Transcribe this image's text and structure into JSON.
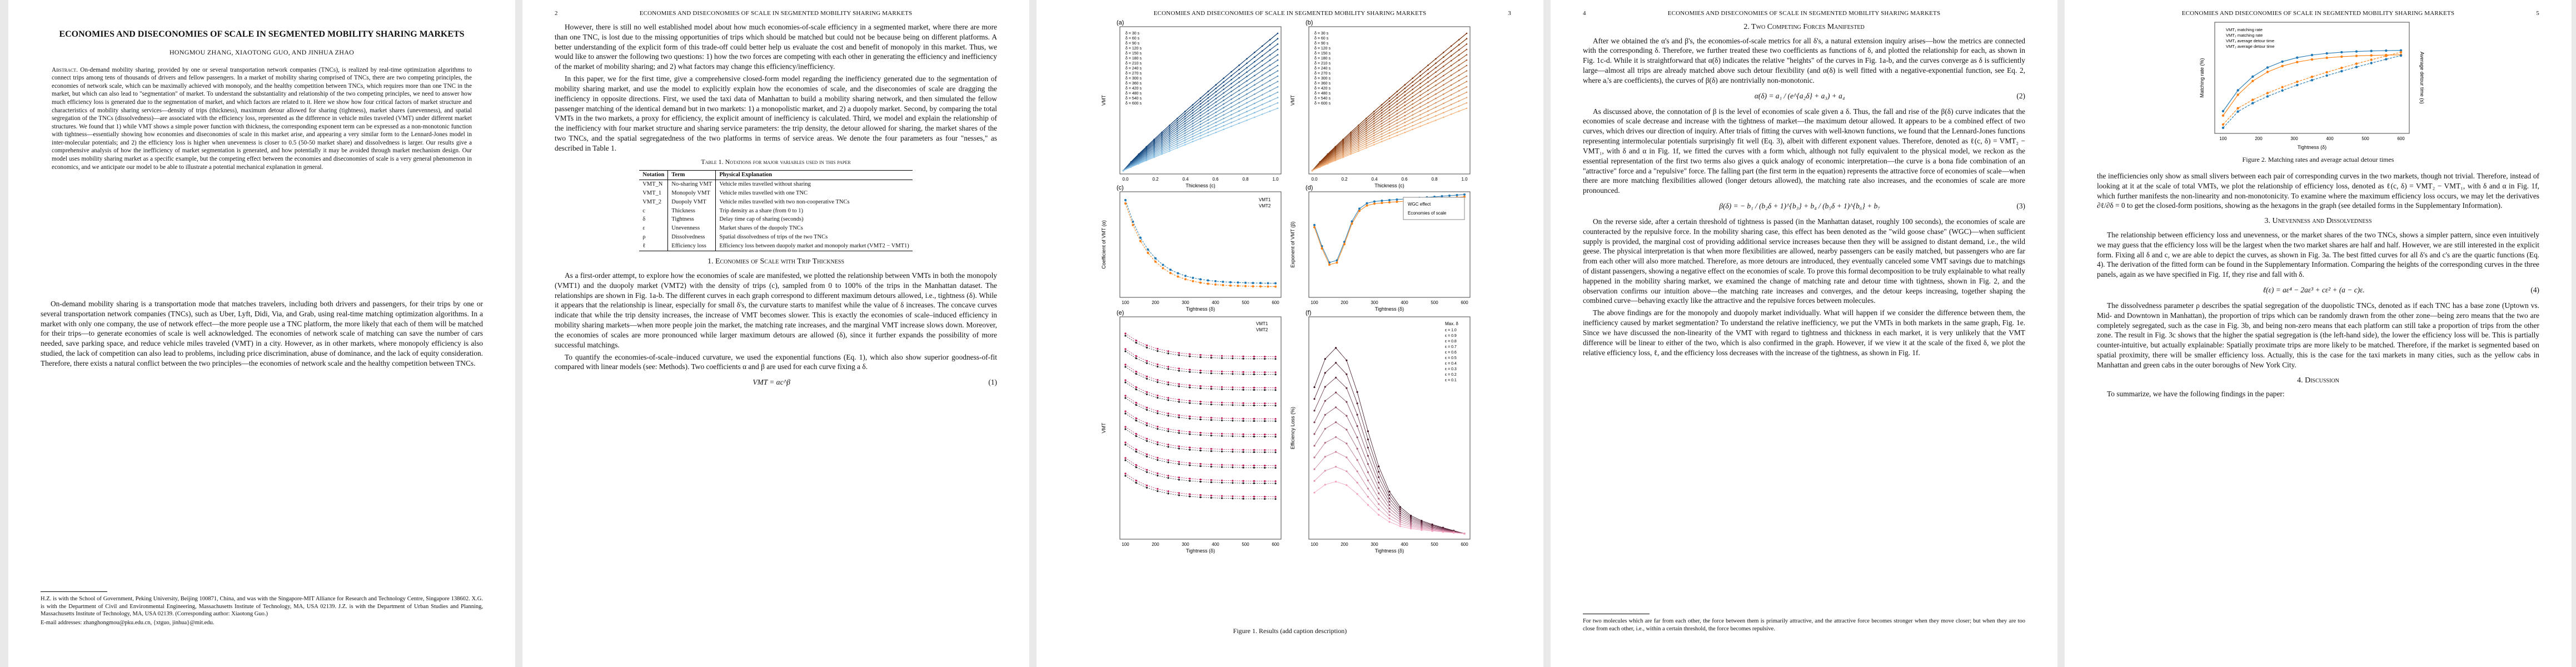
{
  "arxiv_id": "arXiv:2204.02316v1  [cs.SI]  5 Apr 2022",
  "running_head": "ECONOMIES AND DISECONOMIES OF SCALE IN SEGMENTED MOBILITY SHARING MARKETS",
  "page_numbers": [
    "2",
    "3",
    "4",
    "5"
  ],
  "p1": {
    "title": "ECONOMIES AND DISECONOMIES OF SCALE IN SEGMENTED MOBILITY SHARING MARKETS",
    "authors": "HONGMOU ZHANG, XIAOTONG GUO, AND JINHUA ZHAO",
    "abstract_label": "Abstract.",
    "abstract": "On-demand mobility sharing, provided by one or several transportation network companies (TNCs), is realized by real-time optimization algorithms to connect trips among tens of thousands of drivers and fellow passengers. In a market of mobility sharing comprised of TNCs, there are two competing principles, the economies of network scale, which can be maximally achieved with monopoly, and the healthy competition between TNCs, which requires more than one TNC in the market, but which can also lead to \"segmentation\" of market. To understand the substantiality and relationship of the two competing principles, we need to answer how much efficiency loss is generated due to the segmentation of market, and which factors are related to it. Here we show how four critical factors of market structure and characteristics of mobility sharing services—density of trips (thickness), maximum detour allowed for sharing (tightness), market shares (unevenness), and spatial segregation of the TNCs (dissolvedness)—are associated with the efficiency loss, represented as the difference in vehicle miles traveled (VMT) under different market structures. We found that 1) while VMT shows a simple power function with thickness, the corresponding exponent term can be expressed as a non-monotonic function with tightness—essentially showing how economies and diseconomies of scale in this market arise, and appearing a very similar form to the Lennard-Jones model in inter-molecular potentials; and 2) the efficiency loss is higher when unevenness is closer to 0.5 (50-50 market share) and dissolvedness is larger. Our results give a comprehensive analysis of how the inefficiency of market segmentation is generated, and how potentially it may be avoided through market mechanism design. Our model uses mobility sharing market as a specific example, but the competing effect between the economies and diseconomies of scale is a very general phenomenon in economics, and we anticipate our model to be able to illustrate a potential mechanical explanation in general.",
    "intro_p": "On-demand mobility sharing is a transportation mode that matches travelers, including both drivers and passengers, for their trips by one or several transportation network companies (TNCs), such as Uber, Lyft, Didi, Via, and Grab, using real-time matching optimization algorithms. In a market with only one company, the use of network effect—the more people use a TNC platform, the more likely that each of them will be matched for their trips—to generate economies of scale is well acknowledged. The economies of network scale of matching can save the number of cars needed, save parking space, and reduce vehicle miles traveled (VMT) in a city. However, as in other markets, where monopoly efficiency is also studied, the lack of competition can also lead to problems, including price discrimination, abuse of dominance, and the lack of equity consideration. Therefore, there exists a natural conflict between the two principles—the economies of network scale and the healthy competition between TNCs.",
    "footnote": "H.Z. is with the School of Government, Peking University, Beijing 100871, China, and was with the Singapore-MIT Alliance for Research and Technology Centre, Singapore 138602. X.G. is with the Department of Civil and Environmental Engineering, Massachusetts Institute of Technology, MA, USA 02139. J.Z. is with the Department of Urban Studies and Planning, Massachusetts Institute of Technology, MA, USA 02139. (Corresponding author: Xiaotong Guo.)",
    "emails": "E-mail addresses: zhanghongmou@pku.edu.cn, {xtguo, jinhua}@mit.edu."
  },
  "p2": {
    "para1": "However, there is still no well established model about how much economies-of-scale efficiency in a segmented market, where there are more than one TNC, is lost due to the missing opportunities of trips which should be matched but could not be because being on different platforms. A better understanding of the explicit form of this trade-off could better help us evaluate the cost and benefit of monopoly in this market. Thus, we would like to answer the following two questions: 1) how the two forces are competing with each other in generating the efficiency and inefficiency of the market of mobility sharing; and 2) what factors may change this efficiency/inefficiency.",
    "para2": "In this paper, we for the first time, give a comprehensive closed-form model regarding the inefficiency generated due to the segmentation of mobility sharing market, and use the model to explicitly explain how the economies of scale, and the diseconomies of scale are dragging the inefficiency in opposite directions. First, we used the taxi data of Manhattan to build a mobility sharing network, and then simulated the fellow passenger matching of the identical demand but in two markets: 1) a monopolistic market, and 2) a duopoly market. Second, by comparing the total VMTs in the two markets, a proxy for efficiency, the explicit amount of inefficiency is calculated. Third, we model and explain the relationship of the inefficiency with four market structure and sharing service parameters: the trip density, the detour allowed for sharing, the market shares of the two TNCs, and the spatial segregatedness of the two platforms in terms of service areas. We denote the four parameters as four \"nesses,\" as described in Table 1.",
    "table_caption": "Table 1.  Notations for major variables used in this paper",
    "table_headers": [
      "Notation",
      "Term",
      "Physical Explanation"
    ],
    "table_rows": [
      [
        "VMT_N",
        "No-sharing VMT",
        "Vehicle miles travelled without sharing"
      ],
      [
        "VMT_1",
        "Monopoly VMT",
        "Vehicle miles travelled with one TNC"
      ],
      [
        "VMT_2",
        "Duopoly VMT",
        "Vehicle miles travelled with two non-cooperative TNCs"
      ],
      [
        "c",
        "Thickness",
        "Trip density as a share (from 0 to 1)"
      ],
      [
        "δ",
        "Tightness",
        "Delay time cap of sharing (seconds)"
      ],
      [
        "ε",
        "Unevenness",
        "Market shares of the duopoly TNCs"
      ],
      [
        "ρ",
        "Dissolvedness",
        "Spatial dissolvedness of trips of the two TNCs"
      ],
      [
        "ℓ",
        "Efficiency loss",
        "Efficiency loss between duopoly market and monopoly market (VMT2 − VMT1)"
      ]
    ],
    "section": "1. Economies of Scale with Trip Thickness",
    "para3": "As a first-order attempt, to explore how the economies of scale are manifested, we plotted the relationship between VMTs in both the monopoly (VMT1) and the duopoly market (VMT2) with the density of trips (c), sampled from 0 to 100% of the trips in the Manhattan dataset. The relationships are shown in Fig. 1a-b. The different curves in each graph correspond to different maximum detours allowed, i.e., tightness (δ). While it appears that the relationship is linear, especially for small δ's, the curvature starts to manifest while the value of δ increases. The concave curves indicate that while the trip density increases, the increase of VMT becomes slower. This is exactly the economies of scale–induced efficiency in mobility sharing markets—when more people join the market, the matching rate increases, and the marginal VMT increase slows down. Moreover, the economies of scales are more pronounced while larger maximum detours are allowed (δ), since it further expands the possibility of more successful matchings.",
    "para4": "To quantify the economies-of-scale–induced curvature, we used the exponential functions (Eq. 1), which also show superior goodness-of-fit compared with linear models (see: Methods). Two coefficients α and β are used for each curve fixing a δ.",
    "eq1": "VMT = αc^β",
    "eq1_num": "(1)"
  },
  "p3": {
    "fig_caption": "Figure 1.  Results (add caption description)",
    "a_label": "(a)",
    "b_label": "(b)",
    "c_label": "(c)",
    "d_label": "(d)",
    "e_label": "(e)",
    "f_label": "(f)",
    "x_thickness": "Thickness (c)",
    "x_tightness": "Tightness (δ)",
    "y_vmt": "VMT",
    "y_alpha": "Coefficient of VMT (α)",
    "y_beta": "Exponent of VMT (β)",
    "y_eloss": "Efficiency Loss (%)",
    "legend_ab": [
      "δ = 30 s",
      "δ = 60 s",
      "δ = 90 s",
      "δ = 120 s",
      "δ = 150 s",
      "δ = 180 s",
      "δ = 210 s",
      "δ = 240 s",
      "δ = 270 s",
      "δ = 300 s",
      "δ = 360 s",
      "δ = 420 s",
      "δ = 480 s",
      "δ = 540 s",
      "δ = 600 s"
    ],
    "legend_c": [
      "VMT1",
      "VMT2"
    ],
    "legend_d_annot": [
      "WGC effect",
      "Economies of scale"
    ],
    "legend_e": [
      "VMT1",
      "VMT2"
    ],
    "legend_f_title": "Max. δ",
    "legend_f": [
      "ε = 1.0",
      "ε = 0.9",
      "ε = 0.8",
      "ε = 0.7",
      "ε = 0.6",
      "ε = 0.5",
      "ε = 0.4",
      "ε = 0.3",
      "ε = 0.2",
      "ε = 0.1"
    ],
    "x_ticks_thick": [
      "0.0",
      "0.2",
      "0.4",
      "0.6",
      "0.8",
      "1.0"
    ],
    "x_ticks_tight": [
      "100",
      "200",
      "300",
      "400",
      "500",
      "600"
    ]
  },
  "p4": {
    "section": "2. Two Competing Forces Manifested",
    "para1": "After we obtained the α's and β's, the economies-of-scale metrics for all δ's, a natural extension inquiry arises—how the metrics are connected with the corresponding δ. Therefore, we further treated these two coefficients as functions of δ, and plotted the relationship for each, as shown in Fig. 1c-d. While it is straightforward that α(δ) indicates the relative \"heights\" of the curves in Fig. 1a-b, and the curves converge as δ is sufficiently large—almost all trips are already matched above such detour flexibility (and α(δ) is well fitted with a negative-exponential function, see Eq. 2, where aᵢ's are coefficients), the curves of β(δ) are nontrivially non-monotonic.",
    "eq2": "α(δ) = a₁ / (e^{a₂δ} + a₃) + a₄",
    "eq2_num": "(2)",
    "para2": "As discussed above, the connotation of β is the level of economies of scale given a δ. Thus, the fall and rise of the β(δ) curve indicates that the economies of scale decrease and increase with the tightness of market—the maximum detour allowed. It appears to be a combined effect of two curves, which drives our direction of inquiry. After trials of fitting the curves with well-known functions, we found that the Lennard-Jones functions representing intermolecular potentials surprisingly fit well (Eq. 3), albeit with different exponent values. Therefore, denoted as ℓ(c, δ) = VMT₂ − VMT₁, with δ and α in Fig. 1f, we fitted the curves with a form which, although not fully equivalent to the physical model, we reckon as the essential representation of the first two terms also gives a quick analogy of economic interpretation—the curve is a bona fide combination of an \"attractive\" force and a \"repulsive\" force. The falling part (the first term in the equation) represents the attractive force of economies of scale—when there are more matching flexibilities allowed (longer detours allowed), the matching rate also increases, and the economies of scale are more pronounced.",
    "eq3": "β(δ) = − b₁ / (b₂δ + 1)^{b₃} + b₄ / (b₅δ + 1)^{b₆} + b₇",
    "eq3_num": "(3)",
    "para3": "On the reverse side, after a certain threshold of tightness is passed (in the Manhattan dataset, roughly 100 seconds), the economies of scale are counteracted by the repulsive force. In the mobility sharing case, this effect has been denoted as the \"wild goose chase\" (WGC)—when sufficient supply is provided, the marginal cost of providing additional service increases because then they will be assigned to distant demand, i.e., the wild geese. The physical interpretation is that when more flexibilities are allowed, nearby passengers can be easily matched, but passengers who are far from each other will also more matched. Therefore, as more detours are introduced, they eventually canceled some VMT savings due to matchings of distant passengers, showing a negative effect on the economies of scale. To prove this formal decomposition to be truly explainable to what really happened in the mobility sharing market, we examined the change of matching rate and detour time with tightness, shown in Fig. 2, and the observation confirms our intuition above—the matching rate increases and converges, and the detour keeps increasing, together shaping the combined curve—behaving exactly like the attractive and the repulsive forces between molecules.",
    "para4": "The above findings are for the monopoly and duopoly market individually. What will happen if we consider the difference between them, the inefficiency caused by market segmentation? To understand the relative inefficiency, we put the VMTs in both markets in the same graph, Fig. 1e. Since we have discussed the non-linearity of the VMT with regard to tightness and thickness in each market, it is very unlikely that the VMT difference will be linear to either of the two, which is also confirmed in the graph. However, if we view it at the scale of the fixed δ, we plot the relative efficiency loss, ℓ, and the efficiency loss decreases with the increase of the tightness, as shown in Fig. 1f.",
    "footnote": "For two molecules which are far from each other, the force between them is primarily attractive, and the attractive force becomes stronger when they move closer; but when they are too close from each other, i.e., within a certain threshold, the force becomes repulsive."
  },
  "p5": {
    "fig_caption": "Figure 2.  Matching rates and average actual detour times",
    "legend": [
      "VMT₁ matching rate",
      "VMT₂ matching rate",
      "VMT₁ average detour time",
      "VMT₂ average detour time"
    ],
    "y_left": "Matching rate (%)",
    "y_right": "Average detour time (s)",
    "x_label": "Tightness (δ)",
    "x_ticks": [
      "100",
      "200",
      "300",
      "400",
      "500",
      "600"
    ],
    "para1": "the inefficiencies only show as small slivers between each pair of corresponding curves in the two markets, though not trivial. Therefore, instead of looking at it at the scale of total VMTs, we plot the relationship of efficiency loss, denoted as ℓ(c, δ) = VMT₂ − VMT₁, with δ and α in Fig. 1f, which further manifests the non-linearity and non-monotonicity. To examine where the maximum efficiency loss occurs, we may let the derivatives ∂ℓ/∂δ = 0 to get the closed-form positions, showing as the hexagons in the graph (see detailed forms in the Supplementary Information).",
    "section": "3. Unevenness and Dissolvedness",
    "para2": "The relationship between efficiency loss and unevenness, or the market shares of the two TNCs, shows a simpler pattern, since even intuitively we may guess that the efficiency loss will be the largest when the two market shares are half and half. However, we are still interested in the explicit form. Fixing all δ and c, we are able to depict the curves, as shown in Fig. 3a. The best fitted curves for all δ's and c's are the quartic functions (Eq. 4). The derivation of the fitted form can be found in the Supplementary Information. Comparing the heights of the corresponding curves in the three panels, again as we have specified in Fig. 1f, they rise and fall with δ.",
    "eq4": "ℓ(ε) = aε⁴ − 2aε³ + cε² + (a − c)ε.",
    "eq4_num": "(4)",
    "para3": "The dissolvedness parameter ρ describes the spatial segregation of the duopolistic TNCs, denoted as if each TNC has a base zone (Uptown vs. Mid- and Downtown in Manhattan), the proportion of trips which can be randomly drawn from the other zone—being zero means that the two are completely segregated, such as the case in Fig. 3b, and being non-zero means that each platform can still take a proportion of trips from the other zone. The result in Fig. 3c shows that the higher the spatial segregation is (the left-hand side), the lower the efficiency loss will be. This is partially counter-intuitive, but actually explainable: Spatially proximate trips are more likely to be matched. Therefore, if the market is segmented based on spatial proximity, there will be smaller efficiency loss. Actually, this is the case for the taxi markets in many cities, such as the yellow cabs in Manhattan and green cabs in the outer boroughs of New York City.",
    "section2": "4. Discussion",
    "para4": "To summarize, we have the following findings in the paper:"
  }
}
